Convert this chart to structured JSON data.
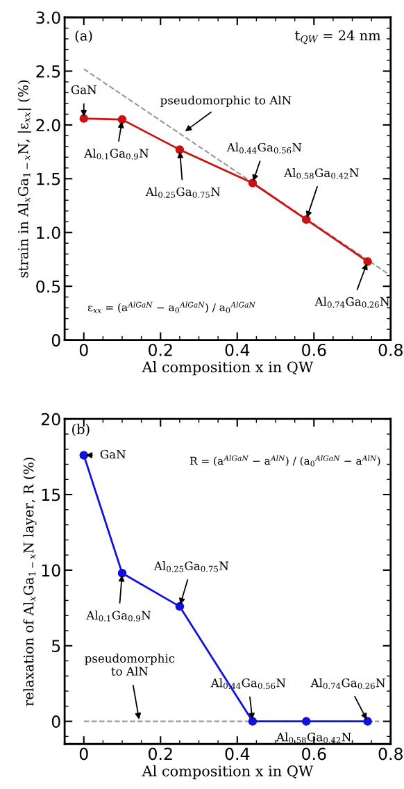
{
  "chart_data": [
    {
      "type": "line",
      "xlabel": "Al composition x in QW",
      "ylabel": "strain in Al$_{x}$Ga$_{1−x}$N, |ε$_{xx}$| (%)",
      "x": [
        0,
        0.1,
        0.25,
        0.44,
        0.58,
        0.74
      ],
      "series": [
        {
          "type": "line",
          "color": "#cc1111",
          "values": [
            2.06,
            2.05,
            1.77,
            1.46,
            1.12,
            0.73
          ],
          "marker": "circle",
          "line_style": "solid"
        },
        {
          "type": "line",
          "color": "#999999",
          "x": [
            0,
            0.8
          ],
          "values": [
            2.52,
            0.6
          ],
          "marker": "none",
          "line_style": "dashed"
        }
      ],
      "xlim": [
        -0.05,
        0.8
      ],
      "ylim": [
        0,
        3
      ],
      "xticks": [
        0,
        0.2,
        0.4,
        0.6,
        0.8
      ],
      "yticks": [
        0,
        0.5,
        {
          "value": 1,
          "label": "1.0"
        },
        1.5,
        {
          "value": 2,
          "label": "2.0"
        },
        2.5,
        {
          "value": 3,
          "label": "3.0"
        }
      ],
      "grid": false,
      "legend": false,
      "annotations": [
        "(a)",
        "t$_{QW}$ = 24 nm",
        "ε$_{xx}$ = (a$^{AlGaN}$ − a$_{0}$$^{AlGaN}$) / a$_{0}$$^{AlGaN}$",
        {
          "text": "GaN",
          "x": 0,
          "y": 2.06
        },
        {
          "text": "Al$_{0.1}$Ga$_{0.9}$N",
          "x": 0.1,
          "y": 2.05
        },
        {
          "text": "Al$_{0.25}$Ga$_{0.75}$N",
          "x": 0.25,
          "y": 1.77
        },
        {
          "text": "Al$_{0.44}$Ga$_{0.56}$N",
          "x": 0.44,
          "y": 1.46
        },
        {
          "text": "Al$_{0.58}$Ga$_{0.42}$N",
          "x": 0.58,
          "y": 1.12
        },
        {
          "text": "Al$_{0.74}$Ga$_{0.26}$N",
          "x": 0.74,
          "y": 0.73
        },
        {
          "text": "pseudomorphic to AlN",
          "x": 0.26,
          "y": 1.93
        }
      ]
    },
    {
      "type": "line",
      "xlabel": "Al composition x in QW",
      "ylabel": "relaxation of Al$_{x}$Ga$_{1−x}$N layer, R (%)",
      "x": [
        0,
        0.1,
        0.25,
        0.44,
        0.58,
        0.74
      ],
      "series": [
        {
          "type": "line",
          "color": "#999999",
          "x": [
            0,
            0.77
          ],
          "values": [
            0,
            0
          ],
          "marker": "none",
          "line_style": "dashed"
        },
        {
          "type": "line",
          "color": "#1111dd",
          "values": [
            17.6,
            9.8,
            7.6,
            0,
            0,
            0
          ],
          "marker": "circle",
          "line_style": "solid"
        }
      ],
      "xlim": [
        -0.05,
        0.8
      ],
      "ylim": [
        -1.5,
        20
      ],
      "xticks": [
        0,
        0.2,
        0.4,
        0.6,
        0.8
      ],
      "yticks": [
        0,
        5,
        10,
        15,
        20
      ],
      "grid": false,
      "legend": false,
      "annotations": [
        "(b)",
        "R = (a$^{AlGaN}$ − a$^{AlN}$) / (a$_{0}$$^{AlGaN}$ − a$^{AlN}$)",
        {
          "text": "GaN",
          "x": 0,
          "y": 17.6
        },
        {
          "text": "Al$_{0.1}$Ga$_{0.9}$N",
          "x": 0.1,
          "y": 9.8
        },
        {
          "text": "Al$_{0.25}$Ga$_{0.75}$N",
          "x": 0.25,
          "y": 7.6
        },
        {
          "text": "Al$_{0.44}$Ga$_{0.56}$N",
          "x": 0.44,
          "y": 0
        },
        {
          "text": "Al$_{0.58}$Ga$_{0.42}$N",
          "x": 0.58,
          "y": 0
        },
        {
          "text": "Al$_{0.74}$Ga$_{0.26}$N",
          "x": 0.74,
          "y": 0
        },
        {
          "text": "pseudomorphic\nto AlN",
          "x": 0.145,
          "y": 0
        }
      ]
    }
  ]
}
